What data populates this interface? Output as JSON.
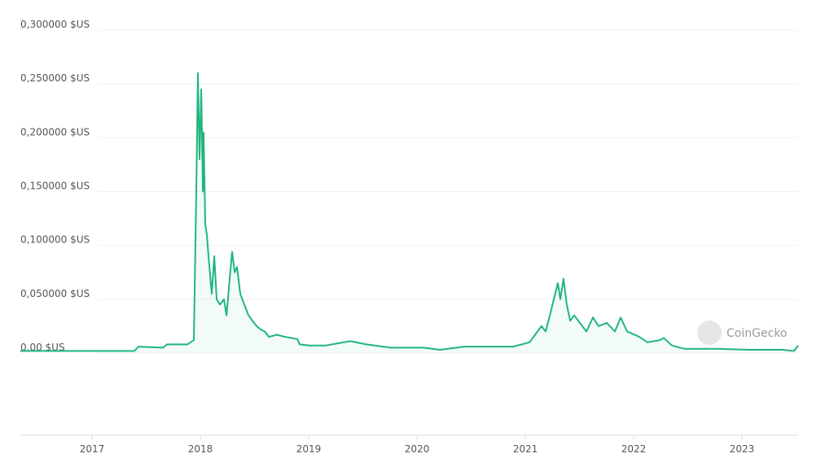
{
  "chart_data": {
    "type": "line",
    "watermark": "CoinGecko",
    "x": [
      2016.338,
      2017.391,
      2017.429,
      2017.654,
      2017.692,
      2017.88,
      2017.94,
      2017.962,
      2017.977,
      2017.992,
      2018.008,
      2018.023,
      2018.03,
      2018.045,
      2018.06,
      2018.075,
      2018.105,
      2018.128,
      2018.15,
      2018.18,
      2018.218,
      2018.241,
      2018.271,
      2018.293,
      2018.316,
      2018.338,
      2018.368,
      2018.406,
      2018.444,
      2018.481,
      2018.519,
      2018.556,
      2018.594,
      2018.632,
      2018.707,
      2018.782,
      2018.895,
      2018.917,
      2019.008,
      2019.158,
      2019.383,
      2019.534,
      2019.759,
      2020.06,
      2020.211,
      2020.436,
      2020.662,
      2020.887,
      2021.038,
      2021.113,
      2021.15,
      2021.188,
      2021.226,
      2021.263,
      2021.301,
      2021.323,
      2021.353,
      2021.383,
      2021.414,
      2021.451,
      2021.526,
      2021.564,
      2021.624,
      2021.677,
      2021.752,
      2021.827,
      2021.88,
      2021.94,
      2022.053,
      2022.128,
      2022.241,
      2022.278,
      2022.353,
      2022.466,
      2022.767,
      2023.068,
      2023.368,
      2023.481,
      2023.519
    ],
    "series": [
      {
        "color": "#1fb67c",
        "values": [
          0.002,
          0.002,
          0.006,
          0.005,
          0.008,
          0.008,
          0.012,
          0.15,
          0.26,
          0.18,
          0.245,
          0.15,
          0.205,
          0.12,
          0.11,
          0.09,
          0.055,
          0.09,
          0.05,
          0.045,
          0.05,
          0.035,
          0.07,
          0.094,
          0.075,
          0.08,
          0.055,
          0.045,
          0.035,
          0.03,
          0.025,
          0.022,
          0.02,
          0.015,
          0.017,
          0.015,
          0.013,
          0.008,
          0.007,
          0.007,
          0.011,
          0.008,
          0.005,
          0.005,
          0.003,
          0.006,
          0.006,
          0.006,
          0.01,
          0.02,
          0.025,
          0.02,
          0.035,
          0.05,
          0.065,
          0.05,
          0.069,
          0.045,
          0.03,
          0.035,
          0.025,
          0.02,
          0.033,
          0.025,
          0.028,
          0.02,
          0.033,
          0.02,
          0.015,
          0.01,
          0.012,
          0.014,
          0.007,
          0.004,
          0.004,
          0.003,
          0.003,
          0.002,
          0.007
        ]
      }
    ],
    "xlim": [
      2016.338,
      2023.519
    ],
    "xticks": [
      2017,
      2018,
      2019,
      2020,
      2021,
      2022,
      2023
    ],
    "ylim": [
      0,
      0.3
    ],
    "yticks": [
      {
        "value": 0,
        "label": "0,00 $US"
      },
      {
        "value": 0.05,
        "label": "0,050000 $US"
      },
      {
        "value": 0.1,
        "label": "0,100000 $US"
      },
      {
        "value": 0.15,
        "label": "0,150000 $US"
      },
      {
        "value": 0.2,
        "label": "0,200000 $US"
      },
      {
        "value": 0.25,
        "label": "0,250000 $US"
      },
      {
        "value": 0.3,
        "label": "0,300000 $US"
      }
    ],
    "grid": true
  }
}
